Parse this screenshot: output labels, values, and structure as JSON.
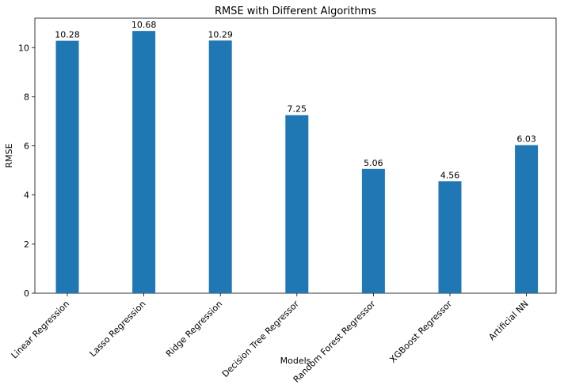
{
  "chart_data": {
    "type": "bar",
    "title": "RMSE with Different Algorithms",
    "xlabel": "Models",
    "ylabel": "RMSE",
    "categories": [
      "Linear Regression",
      "Lasso Regression",
      "Ridge Regression",
      "Decision Tree Regressor",
      "Random Forest Regressor",
      "XGBoost Regressor",
      "Artificial NN"
    ],
    "values": [
      10.28,
      10.68,
      10.29,
      7.25,
      5.06,
      4.56,
      6.03
    ],
    "data_labels": [
      "10.28",
      "10.68",
      "10.29",
      "7.25",
      "5.06",
      "4.56",
      "6.03"
    ],
    "yticks": [
      0,
      2,
      4,
      6,
      8,
      10
    ],
    "ylim": [
      0,
      11.2
    ],
    "bar_color": "#1f77b4",
    "grid": false,
    "legend": "none"
  }
}
